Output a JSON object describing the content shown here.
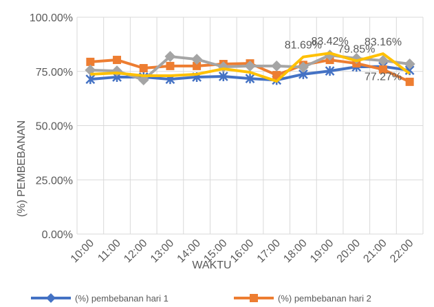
{
  "chart_data": {
    "type": "line",
    "x_label": "WAKTU",
    "y_label": "(%) PEMBEBANAN",
    "categories": [
      "10:00",
      "11:00",
      "12:00",
      "13:00",
      "14:00",
      "15:00",
      "16:00",
      "17:00",
      "18:00",
      "19:00",
      "20:00",
      "21:00",
      "22:00"
    ],
    "series": [
      {
        "name": "(%) pembebanan hari 1",
        "color": "#4472c4",
        "marker": "asterisk",
        "values": [
          71.4,
          72.4,
          72.4,
          71.4,
          72.4,
          72.7,
          71.7,
          71.0,
          73.7,
          75.2,
          77.1,
          77.27,
          75.5
        ],
        "value_labels": [
          null,
          null,
          null,
          null,
          null,
          null,
          null,
          null,
          null,
          null,
          null,
          "77.27%",
          null
        ]
      },
      {
        "name": "(%) pembebanan hari 2",
        "color": "#ed7d31",
        "marker": "square",
        "values": [
          79.4,
          80.3,
          76.5,
          77.5,
          77.5,
          78.4,
          78.7,
          73.3,
          78.0,
          80.3,
          78.7,
          75.9,
          70.2
        ]
      },
      {
        "color": "#a5a5a5",
        "marker": "diamond",
        "values": [
          75.6,
          75.2,
          71.1,
          81.9,
          80.6,
          77.1,
          77.5,
          77.5,
          77.0,
          82.5,
          81.0,
          80.0,
          78.4
        ]
      },
      {
        "color": "#ffc000",
        "marker": "none",
        "values": [
          73.7,
          74.3,
          73.0,
          73.0,
          73.7,
          76.2,
          74.6,
          70.5,
          81.69,
          83.42,
          79.85,
          83.16,
          74.0
        ],
        "value_labels": [
          null,
          null,
          null,
          null,
          null,
          null,
          null,
          null,
          "81.69%",
          "83.42%",
          "79.85%",
          "83.16%",
          null
        ]
      }
    ],
    "ylim": [
      0,
      100
    ],
    "yticks": [
      {
        "value": 0,
        "label": "0.00%"
      },
      {
        "value": 25,
        "label": "25.00%"
      },
      {
        "value": 50,
        "label": "50.00%"
      },
      {
        "value": 75,
        "label": "75.00%"
      },
      {
        "value": 100,
        "label": "100.00%"
      }
    ],
    "grid": true,
    "legend": "bottom"
  }
}
